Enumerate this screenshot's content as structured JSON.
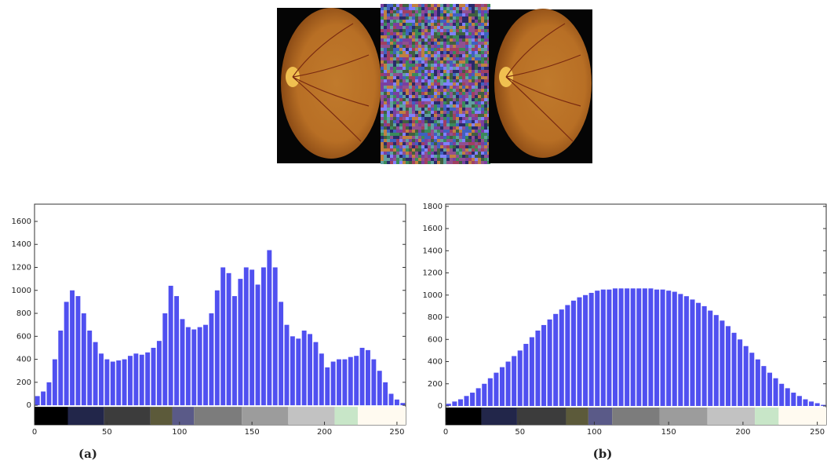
{
  "chart_data": [
    {
      "type": "histogram",
      "caption": "(a)",
      "color": "#5050f0",
      "bins": [
        0,
        4,
        8,
        12,
        16,
        20,
        24,
        28,
        32,
        36,
        40,
        44,
        48,
        52,
        56,
        60,
        64,
        68,
        72,
        76,
        80,
        84,
        88,
        92,
        96,
        100,
        104,
        108,
        112,
        116,
        120,
        124,
        128,
        132,
        136,
        140,
        144,
        148,
        152,
        156,
        160,
        164,
        168,
        172,
        176,
        180,
        184,
        188,
        192,
        196,
        200,
        204,
        208,
        212,
        216,
        220,
        224,
        228,
        232,
        236,
        240,
        244,
        248,
        252,
        256
      ],
      "values": [
        80,
        120,
        200,
        400,
        650,
        900,
        1000,
        950,
        800,
        650,
        550,
        450,
        400,
        380,
        390,
        400,
        430,
        450,
        440,
        460,
        500,
        560,
        800,
        1040,
        950,
        750,
        680,
        660,
        680,
        700,
        800,
        1000,
        1200,
        1150,
        950,
        1100,
        1200,
        1180,
        1050,
        1200,
        1350,
        1200,
        900,
        700,
        600,
        580,
        650,
        620,
        550,
        450,
        330,
        380,
        400,
        400,
        420,
        430,
        500,
        480,
        400,
        300,
        200,
        100,
        50,
        20
      ],
      "xlim": [
        0,
        256
      ],
      "xticks": [
        0,
        50,
        100,
        150,
        200,
        250
      ],
      "ylim": [
        -170,
        1750
      ],
      "yticks": [
        0,
        200,
        400,
        600,
        800,
        1000,
        1200,
        1400,
        1600
      ],
      "colorbar": [
        {
          "start": 0,
          "end": 23,
          "color": "#000000"
        },
        {
          "start": 23,
          "end": 48,
          "color": "#22264a"
        },
        {
          "start": 48,
          "end": 80,
          "color": "#3c3c3c"
        },
        {
          "start": 80,
          "end": 95,
          "color": "#5c5a3a"
        },
        {
          "start": 95,
          "end": 110,
          "color": "#5a5a88"
        },
        {
          "start": 110,
          "end": 143,
          "color": "#7c7c7c"
        },
        {
          "start": 143,
          "end": 175,
          "color": "#9c9c9c"
        },
        {
          "start": 175,
          "end": 207,
          "color": "#c2c2c2"
        },
        {
          "start": 207,
          "end": 223,
          "color": "#c8e6c8"
        },
        {
          "start": 223,
          "end": 256,
          "color": "#fffaf0"
        }
      ]
    },
    {
      "type": "histogram",
      "caption": "(b)",
      "color": "#5050f0",
      "bins": [
        0,
        4,
        8,
        12,
        16,
        20,
        24,
        28,
        32,
        36,
        40,
        44,
        48,
        52,
        56,
        60,
        64,
        68,
        72,
        76,
        80,
        84,
        88,
        92,
        96,
        100,
        104,
        108,
        112,
        116,
        120,
        124,
        128,
        132,
        136,
        140,
        144,
        148,
        152,
        156,
        160,
        164,
        168,
        172,
        176,
        180,
        184,
        188,
        192,
        196,
        200,
        204,
        208,
        212,
        216,
        220,
        224,
        228,
        232,
        236,
        240,
        244,
        248,
        252,
        256
      ],
      "values": [
        20,
        40,
        60,
        90,
        120,
        160,
        200,
        250,
        300,
        350,
        400,
        450,
        500,
        560,
        620,
        680,
        730,
        780,
        830,
        870,
        910,
        950,
        980,
        1000,
        1020,
        1040,
        1050,
        1050,
        1060,
        1060,
        1060,
        1060,
        1060,
        1060,
        1060,
        1050,
        1050,
        1040,
        1030,
        1010,
        990,
        960,
        930,
        900,
        860,
        820,
        770,
        720,
        660,
        600,
        540,
        480,
        420,
        360,
        300,
        250,
        200,
        160,
        120,
        90,
        60,
        40,
        25,
        10
      ],
      "xlim": [
        0,
        256
      ],
      "xticks": [
        0,
        50,
        100,
        150,
        200,
        250
      ],
      "ylim": [
        -170,
        1820
      ],
      "yticks": [
        0,
        200,
        400,
        600,
        800,
        1000,
        1200,
        1400,
        1600,
        1800
      ],
      "colorbar": [
        {
          "start": 0,
          "end": 24,
          "color": "#000000"
        },
        {
          "start": 24,
          "end": 48,
          "color": "#22264a"
        },
        {
          "start": 48,
          "end": 81,
          "color": "#3c3c3c"
        },
        {
          "start": 81,
          "end": 96,
          "color": "#5c5a3a"
        },
        {
          "start": 96,
          "end": 112,
          "color": "#5a5a88"
        },
        {
          "start": 112,
          "end": 144,
          "color": "#7c7c7c"
        },
        {
          "start": 144,
          "end": 176,
          "color": "#9c9c9c"
        },
        {
          "start": 176,
          "end": 208,
          "color": "#c2c2c2"
        },
        {
          "start": 208,
          "end": 224,
          "color": "#c8e6c8"
        },
        {
          "start": 224,
          "end": 256,
          "color": "#fffaf0"
        }
      ]
    }
  ]
}
